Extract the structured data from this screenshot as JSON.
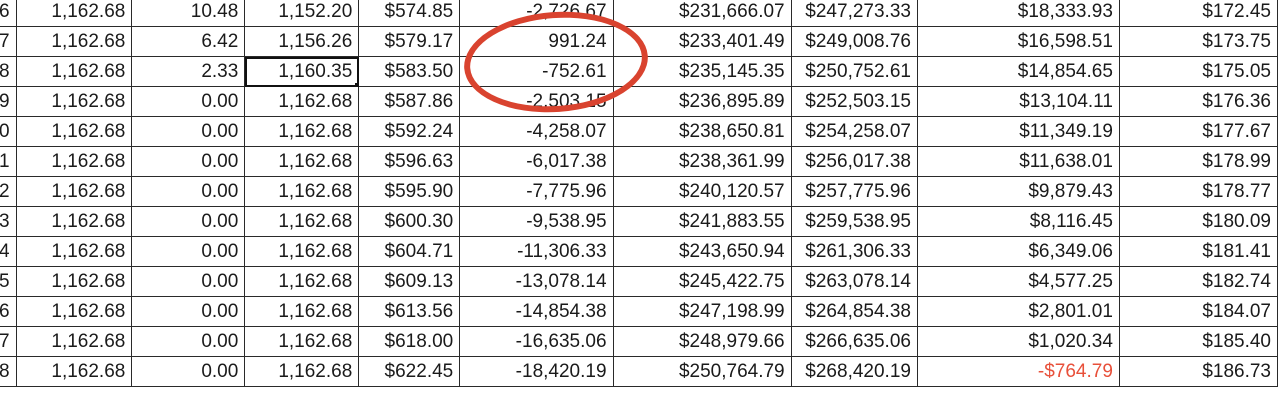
{
  "spreadsheet": {
    "rows": [
      [
        "6",
        "1,162.68",
        "10.48",
        "1,152.20",
        "$574.85",
        "-2,726.67",
        "$231,666.07",
        "$247,273.33",
        "$18,333.93",
        "$172.45"
      ],
      [
        "7",
        "1,162.68",
        "6.42",
        "1,156.26",
        "$579.17",
        "991.24",
        "$233,401.49",
        "$249,008.76",
        "$16,598.51",
        "$173.75"
      ],
      [
        "8",
        "1,162.68",
        "2.33",
        "1,160.35",
        "$583.50",
        "-752.61",
        "$235,145.35",
        "$250,752.61",
        "$14,854.65",
        "$175.05"
      ],
      [
        "9",
        "1,162.68",
        "0.00",
        "1,162.68",
        "$587.86",
        "-2,503.15",
        "$236,895.89",
        "$252,503.15",
        "$13,104.11",
        "$176.36"
      ],
      [
        "0",
        "1,162.68",
        "0.00",
        "1,162.68",
        "$592.24",
        "-4,258.07",
        "$238,650.81",
        "$254,258.07",
        "$11,349.19",
        "$177.67"
      ],
      [
        "1",
        "1,162.68",
        "0.00",
        "1,162.68",
        "$596.63",
        "-6,017.38",
        "$238,361.99",
        "$256,017.38",
        "$11,638.01",
        "$178.99"
      ],
      [
        "2",
        "1,162.68",
        "0.00",
        "1,162.68",
        "$595.90",
        "-7,775.96",
        "$240,120.57",
        "$257,775.96",
        "$9,879.43",
        "$178.77"
      ],
      [
        "3",
        "1,162.68",
        "0.00",
        "1,162.68",
        "$600.30",
        "-9,538.95",
        "$241,883.55",
        "$259,538.95",
        "$8,116.45",
        "$180.09"
      ],
      [
        "4",
        "1,162.68",
        "0.00",
        "1,162.68",
        "$604.71",
        "-11,306.33",
        "$243,650.94",
        "$261,306.33",
        "$6,349.06",
        "$181.41"
      ],
      [
        "5",
        "1,162.68",
        "0.00",
        "1,162.68",
        "$609.13",
        "-13,078.14",
        "$245,422.75",
        "$263,078.14",
        "$4,577.25",
        "$182.74"
      ],
      [
        "6",
        "1,162.68",
        "0.00",
        "1,162.68",
        "$613.56",
        "-14,854.38",
        "$247,198.99",
        "$264,854.38",
        "$2,801.01",
        "$184.07"
      ],
      [
        "7",
        "1,162.68",
        "0.00",
        "1,162.68",
        "$618.00",
        "-16,635.06",
        "$248,979.66",
        "$266,635.06",
        "$1,020.34",
        "$185.40"
      ],
      [
        "8",
        "1,162.68",
        "0.00",
        "1,162.68",
        "$622.45",
        "-18,420.19",
        "$250,764.79",
        "$268,420.19",
        "-$764.79",
        "$186.73"
      ]
    ],
    "selected_cell": {
      "row": 2,
      "col": 3
    },
    "negative_highlight_cell": {
      "row": 12,
      "col": 8
    },
    "colors": {
      "annotation_circle": "#d9432f",
      "negative_text": "#e8503a",
      "grid_lines": "#2a2a2a"
    }
  }
}
